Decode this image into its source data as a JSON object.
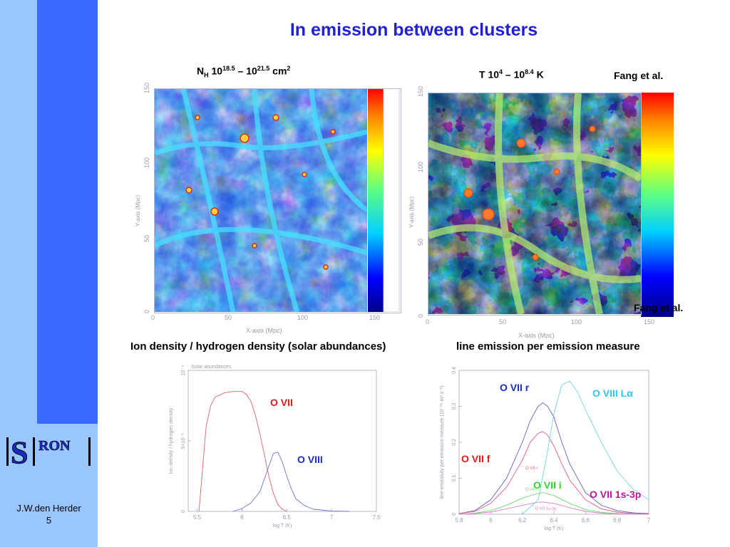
{
  "title": "In emission between clusters",
  "footer": {
    "author": "J.W.den Herder",
    "page": "5"
  },
  "logo": {
    "text": "SRON"
  },
  "maps": {
    "left": {
      "label": {
        "prefix": "N",
        "prefix_sub": "H",
        "base1": " 10",
        "exp1": "18.5",
        "dash": " – 10",
        "exp2": "21.5",
        "unit": " cm",
        "unit_exp": "2"
      },
      "xlabel": "X-axis (Mpc)",
      "ylabel": "Y-axis (Mpc)",
      "xticks": [
        "0",
        "50",
        "100",
        "150"
      ],
      "yticks": [
        "0",
        "50",
        "100",
        "150"
      ]
    },
    "right": {
      "label": {
        "prefix": "T 10",
        "exp1": "4",
        "dash": " – 10",
        "exp2": "8.4",
        "unit": " K"
      },
      "credit": "Fang et al.",
      "credit2": "Fang et al.",
      "xlabel": "X-axis (Mpc)",
      "ylabel": "Y-axis (Mpc)",
      "xticks": [
        "0",
        "50",
        "100",
        "150"
      ],
      "yticks": [
        "0",
        "50",
        "100",
        "150"
      ]
    }
  },
  "captions": {
    "left": "Ion density / hydrogen density (solar abundances)",
    "right": "line emission per emission measure"
  },
  "chart_data": [
    {
      "type": "line",
      "subtitle": "Solar abundances",
      "xlabel": "log T (K)",
      "ylabel": "ion density / hydrogen density",
      "xlim": [
        5.4,
        7.5
      ],
      "ylim": [
        0,
        0.0001
      ],
      "xticks": [
        "5.5",
        "6",
        "6.5",
        "7",
        "7.5"
      ],
      "yticks": [
        "0",
        "5×10⁻⁵",
        "10⁻⁴"
      ],
      "series": [
        {
          "name": "O VII",
          "color": "#e06070",
          "x": [
            5.52,
            5.56,
            5.6,
            5.65,
            5.7,
            5.8,
            5.9,
            6.0,
            6.05,
            6.1,
            6.15,
            6.2,
            6.25,
            6.3,
            6.35,
            6.4,
            6.45,
            6.5
          ],
          "y": [
            0,
            3e-05,
            6e-05,
            7.5e-05,
            8.1e-05,
            8.4e-05,
            8.5e-05,
            8.5e-05,
            8.3e-05,
            7.8e-05,
            6.8e-05,
            5.5e-05,
            4e-05,
            2.5e-05,
            1.3e-05,
            5e-06,
            1.5e-06,
            0
          ]
        },
        {
          "name": "O VIII",
          "color": "#7070d8",
          "x": [
            5.9,
            6.0,
            6.1,
            6.2,
            6.3,
            6.35,
            6.4,
            6.45,
            6.5,
            6.55,
            6.6,
            6.7,
            6.8,
            7.0,
            7.2
          ],
          "y": [
            0,
            2e-06,
            6e-06,
            1.4e-05,
            3.2e-05,
            4.1e-05,
            4.2e-05,
            3.5e-05,
            2.5e-05,
            1.6e-05,
            9e-06,
            4e-06,
            1.5e-06,
            3e-07,
            0
          ]
        }
      ]
    },
    {
      "type": "line",
      "xlabel": "log T (K)",
      "ylabel": "line emissivity per emission measure (10⁻¹⁶ m³ s⁻¹)",
      "xlim": [
        5.8,
        7
      ],
      "ylim": [
        0,
        0.4
      ],
      "xticks": [
        "5.8",
        "6",
        "6.2",
        "6.4",
        "6.6",
        "6.8",
        "7"
      ],
      "yticks": [
        "0",
        "0.1",
        "0.2",
        "0.3",
        "0.4"
      ],
      "annotations": [
        "O VII r",
        "O VII i",
        "O VII 1s-3p"
      ],
      "series": [
        {
          "name": "O VII r",
          "color": "#6060c8",
          "x": [
            5.8,
            5.9,
            6.0,
            6.1,
            6.2,
            6.25,
            6.3,
            6.33,
            6.36,
            6.4,
            6.45,
            6.5,
            6.6,
            6.7,
            6.8,
            6.9,
            7.0
          ],
          "y": [
            0.002,
            0.01,
            0.04,
            0.1,
            0.2,
            0.26,
            0.3,
            0.31,
            0.3,
            0.27,
            0.2,
            0.14,
            0.06,
            0.025,
            0.01,
            0.004,
            0.002
          ]
        },
        {
          "name": "O VII f",
          "color": "#e06080",
          "x": [
            5.8,
            5.9,
            6.0,
            6.1,
            6.2,
            6.25,
            6.3,
            6.33,
            6.36,
            6.4,
            6.45,
            6.5,
            6.6,
            6.7,
            6.8,
            6.9,
            7.0
          ],
          "y": [
            0.002,
            0.008,
            0.03,
            0.075,
            0.15,
            0.2,
            0.225,
            0.23,
            0.22,
            0.19,
            0.14,
            0.095,
            0.04,
            0.015,
            0.006,
            0.002,
            0.001
          ]
        },
        {
          "name": "O VII i",
          "color": "#70d870",
          "x": [
            5.8,
            5.9,
            6.0,
            6.1,
            6.2,
            6.3,
            6.33,
            6.4,
            6.5,
            6.6,
            6.7,
            6.8,
            7.0
          ],
          "y": [
            0.0,
            0.003,
            0.01,
            0.025,
            0.045,
            0.058,
            0.06,
            0.052,
            0.03,
            0.013,
            0.005,
            0.002,
            0.0
          ]
        },
        {
          "name": "O VII 1s-3p",
          "color": "#e080c8",
          "x": [
            5.8,
            5.9,
            6.0,
            6.1,
            6.2,
            6.3,
            6.33,
            6.4,
            6.5,
            6.6,
            6.7,
            6.8,
            7.0
          ],
          "y": [
            0.0,
            0.002,
            0.006,
            0.015,
            0.025,
            0.033,
            0.034,
            0.03,
            0.018,
            0.008,
            0.003,
            0.001,
            0.0
          ]
        },
        {
          "name": "O VIII Lα",
          "color": "#70d8d8",
          "x": [
            6.2,
            6.3,
            6.35,
            6.4,
            6.45,
            6.5,
            6.55,
            6.6,
            6.7,
            6.8,
            6.9,
            7.0
          ],
          "y": [
            0.0,
            0.04,
            0.15,
            0.28,
            0.36,
            0.37,
            0.34,
            0.29,
            0.2,
            0.12,
            0.07,
            0.04
          ]
        }
      ]
    }
  ]
}
